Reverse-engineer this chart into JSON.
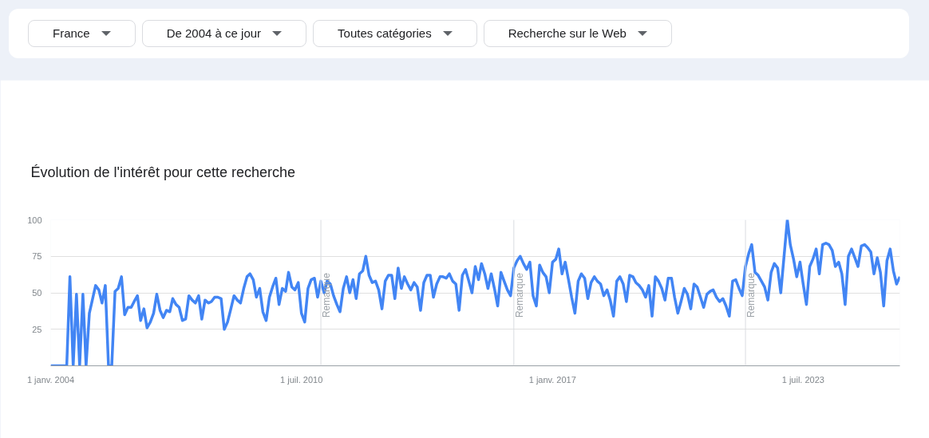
{
  "chart_data": {
    "type": "line",
    "title": "Évolution de l'intérêt pour cette recherche",
    "annotations": [
      "France",
      "De 2004 à ce jour",
      "Toutes catégories",
      "Recherche sur le Web"
    ],
    "xlim": [
      "2004-01",
      "2026-01"
    ],
    "xticks": [
      {
        "value": "2004-01-01",
        "label": "1 janv. 2004"
      },
      {
        "value": "2010-07-01",
        "label": "1 juil. 2010"
      },
      {
        "value": "2017-01-01",
        "label": "1 janv. 2017"
      },
      {
        "value": "2023-07-01",
        "label": "1 juil. 2023"
      }
    ],
    "ylim": [
      0,
      100
    ],
    "yticks": [
      {
        "value": 0,
        "label": null
      },
      25,
      50,
      75,
      100
    ],
    "grid": "y",
    "line_style": "solid",
    "ref_lines": [
      {
        "axis": "x",
        "value": "2011-01",
        "label": "Remarque",
        "color": "#dadce0"
      },
      {
        "axis": "x",
        "value": "2016-01",
        "label": "Remarque",
        "color": "#dadce0"
      },
      {
        "axis": "x",
        "value": "2022-01",
        "label": "Remarque",
        "color": "#dadce0"
      }
    ],
    "x": [
      "2004-01",
      "2004-02",
      "2004-03",
      "2004-04",
      "2004-05",
      "2004-06",
      "2004-07",
      "2004-08",
      "2004-09",
      "2004-10",
      "2004-11",
      "2004-12",
      "2005-01",
      "2005-02",
      "2005-03",
      "2005-04",
      "2005-05",
      "2005-06",
      "2005-07",
      "2005-08",
      "2005-09",
      "2005-10",
      "2005-11",
      "2005-12",
      "2006-01",
      "2006-02",
      "2006-03",
      "2006-04",
      "2006-05",
      "2006-06",
      "2006-07",
      "2006-08",
      "2006-09",
      "2006-10",
      "2006-11",
      "2006-12",
      "2007-01",
      "2007-02",
      "2007-03",
      "2007-04",
      "2007-05",
      "2007-06",
      "2007-07",
      "2007-08",
      "2007-09",
      "2007-10",
      "2007-11",
      "2007-12",
      "2008-01",
      "2008-02",
      "2008-03",
      "2008-04",
      "2008-05",
      "2008-06",
      "2008-07",
      "2008-08",
      "2008-09",
      "2008-10",
      "2008-11",
      "2008-12",
      "2009-01",
      "2009-02",
      "2009-03",
      "2009-04",
      "2009-05",
      "2009-06",
      "2009-07",
      "2009-08",
      "2009-09",
      "2009-10",
      "2009-11",
      "2009-12",
      "2010-01",
      "2010-02",
      "2010-03",
      "2010-04",
      "2010-05",
      "2010-06",
      "2010-07",
      "2010-08",
      "2010-09",
      "2010-10",
      "2010-11",
      "2010-12",
      "2011-01",
      "2011-02",
      "2011-03",
      "2011-04",
      "2011-05",
      "2011-06",
      "2011-07",
      "2011-08",
      "2011-09",
      "2011-10",
      "2011-11",
      "2011-12",
      "2012-01",
      "2012-02",
      "2012-03",
      "2012-04",
      "2012-05",
      "2012-06",
      "2012-07",
      "2012-08",
      "2012-09",
      "2012-10",
      "2012-11",
      "2012-12",
      "2013-01",
      "2013-02",
      "2013-03",
      "2013-04",
      "2013-05",
      "2013-06",
      "2013-07",
      "2013-08",
      "2013-09",
      "2013-10",
      "2013-11",
      "2013-12",
      "2014-01",
      "2014-02",
      "2014-03",
      "2014-04",
      "2014-05",
      "2014-06",
      "2014-07",
      "2014-08",
      "2014-09",
      "2014-10",
      "2014-11",
      "2014-12",
      "2015-01",
      "2015-02",
      "2015-03",
      "2015-04",
      "2015-05",
      "2015-06",
      "2015-07",
      "2015-08",
      "2015-09",
      "2015-10",
      "2015-11",
      "2015-12",
      "2016-01",
      "2016-02",
      "2016-03",
      "2016-04",
      "2016-05",
      "2016-06",
      "2016-07",
      "2016-08",
      "2016-09",
      "2016-10",
      "2016-11",
      "2016-12",
      "2017-01",
      "2017-02",
      "2017-03",
      "2017-04",
      "2017-05",
      "2017-06",
      "2017-07",
      "2017-08",
      "2017-09",
      "2017-10",
      "2017-11",
      "2017-12",
      "2018-01",
      "2018-02",
      "2018-03",
      "2018-04",
      "2018-05",
      "2018-06",
      "2018-07",
      "2018-08",
      "2018-09",
      "2018-10",
      "2018-11",
      "2018-12",
      "2019-01",
      "2019-02",
      "2019-03",
      "2019-04",
      "2019-05",
      "2019-06",
      "2019-07",
      "2019-08",
      "2019-09",
      "2019-10",
      "2019-11",
      "2019-12",
      "2020-01",
      "2020-02",
      "2020-03",
      "2020-04",
      "2020-05",
      "2020-06",
      "2020-07",
      "2020-08",
      "2020-09",
      "2020-10",
      "2020-11",
      "2020-12",
      "2021-01",
      "2021-02",
      "2021-03",
      "2021-04",
      "2021-05",
      "2021-06",
      "2021-07",
      "2021-08",
      "2021-09",
      "2021-10",
      "2021-11",
      "2021-12",
      "2022-01",
      "2022-02",
      "2022-03",
      "2022-04",
      "2022-05",
      "2022-06",
      "2022-07",
      "2022-08",
      "2022-09",
      "2022-10",
      "2022-11",
      "2022-12",
      "2023-01",
      "2023-02",
      "2023-03",
      "2023-04",
      "2023-05",
      "2023-06",
      "2023-07",
      "2023-08",
      "2023-09",
      "2023-10",
      "2023-11",
      "2023-12",
      "2024-01",
      "2024-02",
      "2024-03",
      "2024-04",
      "2024-05",
      "2024-06",
      "2024-07",
      "2024-08",
      "2024-09",
      "2024-10",
      "2024-11",
      "2024-12",
      "2025-01",
      "2025-02",
      "2025-03",
      "2025-04",
      "2025-05",
      "2025-06",
      "2025-07",
      "2025-08",
      "2025-09",
      "2025-10",
      "2025-11",
      "2025-12",
      "2026-01"
    ],
    "series": [
      {
        "color": "#4285f4",
        "values": [
          0,
          0,
          0,
          0,
          0,
          0,
          61,
          0,
          49,
          0,
          49,
          0,
          36,
          46,
          55,
          52,
          43,
          55,
          0,
          0,
          51,
          53,
          61,
          35,
          40,
          40,
          44,
          48,
          31,
          39,
          26,
          30,
          36,
          49,
          38,
          33,
          38,
          37,
          46,
          42,
          40,
          31,
          32,
          48,
          45,
          43,
          48,
          32,
          45,
          43,
          44,
          47,
          47,
          46,
          25,
          30,
          39,
          48,
          45,
          43,
          53,
          61,
          63,
          59,
          47,
          53,
          37,
          31,
          47,
          54,
          60,
          42,
          53,
          51,
          64,
          54,
          52,
          57,
          36,
          30,
          53,
          59,
          60,
          47,
          58,
          50,
          58,
          56,
          48,
          42,
          37,
          53,
          61,
          50,
          59,
          46,
          63,
          65,
          75,
          62,
          57,
          58,
          52,
          39,
          58,
          62,
          62,
          46,
          67,
          53,
          61,
          56,
          52,
          57,
          54,
          38,
          57,
          62,
          62,
          47,
          56,
          61,
          61,
          60,
          63,
          58,
          56,
          38,
          62,
          66,
          58,
          50,
          68,
          59,
          70,
          63,
          53,
          63,
          53,
          41,
          64,
          58,
          52,
          48,
          67,
          72,
          75,
          70,
          66,
          71,
          48,
          41,
          69,
          64,
          61,
          50,
          71,
          73,
          80,
          63,
          71,
          59,
          47,
          36,
          58,
          63,
          60,
          46,
          57,
          61,
          58,
          56,
          48,
          52,
          45,
          34,
          58,
          61,
          56,
          44,
          62,
          61,
          57,
          55,
          52,
          47,
          55,
          34,
          61,
          58,
          53,
          45,
          60,
          60,
          47,
          36,
          44,
          53,
          49,
          39,
          56,
          54,
          47,
          40,
          49,
          51,
          52,
          47,
          44,
          46,
          41,
          34,
          58,
          59,
          53,
          48,
          68,
          77,
          83,
          64,
          62,
          58,
          54,
          45,
          64,
          70,
          67,
          50,
          75,
          100,
          83,
          73,
          61,
          71,
          56,
          42,
          68,
          73,
          80,
          63,
          83,
          84,
          83,
          79,
          68,
          71,
          63,
          42,
          75,
          80,
          74,
          68,
          82,
          83,
          81,
          78,
          63,
          74,
          64,
          41,
          72,
          80,
          65,
          56,
          61
        ]
      }
    ]
  }
}
